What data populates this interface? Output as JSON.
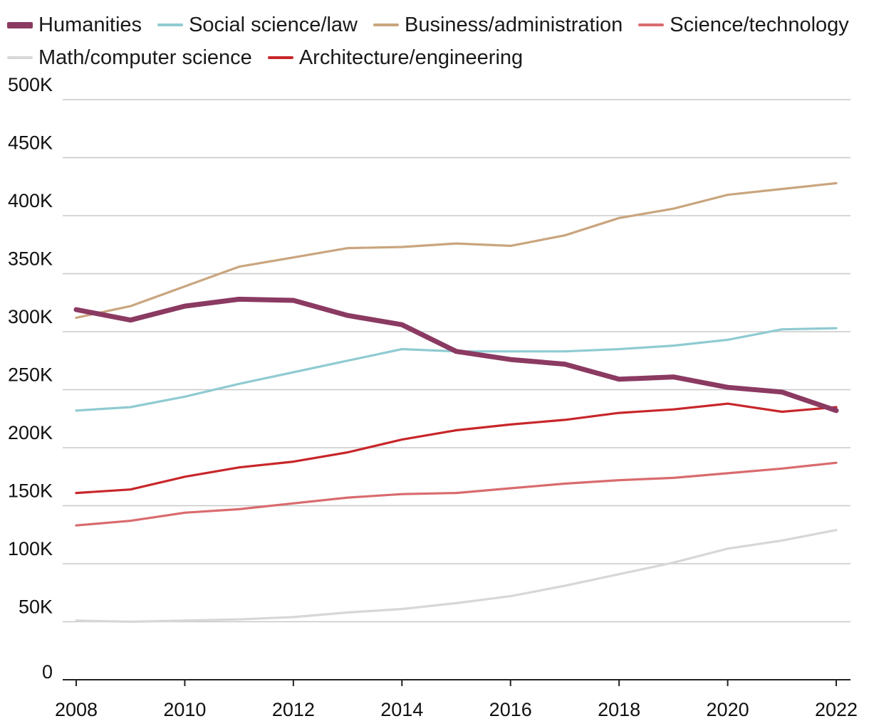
{
  "chart_data": {
    "type": "line",
    "title": "",
    "xlabel": "",
    "ylabel": "",
    "x": [
      2008,
      2009,
      2010,
      2011,
      2012,
      2013,
      2014,
      2015,
      2016,
      2017,
      2018,
      2019,
      2020,
      2021,
      2022
    ],
    "xlim": [
      2008,
      2022
    ],
    "ylim": [
      0,
      500000
    ],
    "grid": true,
    "legend_position": "top",
    "x_ticks": [
      "2008",
      "2010",
      "2012",
      "2014",
      "2016",
      "2018",
      "2020",
      "2022"
    ],
    "y_ticks": [
      "0",
      "50K",
      "100K",
      "150K",
      "200K",
      "250K",
      "300K",
      "350K",
      "400K",
      "450K",
      "500K"
    ],
    "series": [
      {
        "name": "Humanities",
        "color": "#8b3a62",
        "emphasis": true,
        "values": [
          319000,
          310000,
          322000,
          328000,
          327000,
          314000,
          306000,
          283000,
          276000,
          272000,
          259000,
          261000,
          252000,
          248000,
          232000
        ]
      },
      {
        "name": "Social science/law",
        "color": "#8fcbd1",
        "values": [
          232000,
          235000,
          244000,
          255000,
          265000,
          275000,
          285000,
          283000,
          283000,
          283000,
          285000,
          288000,
          293000,
          302000,
          303000
        ]
      },
      {
        "name": "Business/administration",
        "color": "#c9a57e",
        "values": [
          312000,
          322000,
          339000,
          356000,
          364000,
          372000,
          373000,
          376000,
          374000,
          383000,
          398000,
          406000,
          418000,
          423000,
          428000
        ]
      },
      {
        "name": "Science/technology",
        "color": "#d96b6e",
        "values": [
          133000,
          137000,
          144000,
          147000,
          152000,
          157000,
          160000,
          161000,
          165000,
          169000,
          172000,
          174000,
          178000,
          182000,
          187000
        ]
      },
      {
        "name": "Math/computer science",
        "color": "#d7d7d7",
        "values": [
          51000,
          50000,
          51000,
          52000,
          54000,
          58000,
          61000,
          66000,
          72000,
          81000,
          91000,
          101000,
          113000,
          120000,
          129000
        ]
      },
      {
        "name": "Architecture/engineering",
        "color": "#c8262a",
        "values": [
          161000,
          164000,
          175000,
          183000,
          188000,
          196000,
          207000,
          215000,
          220000,
          224000,
          230000,
          233000,
          238000,
          231000,
          235000
        ]
      }
    ]
  }
}
